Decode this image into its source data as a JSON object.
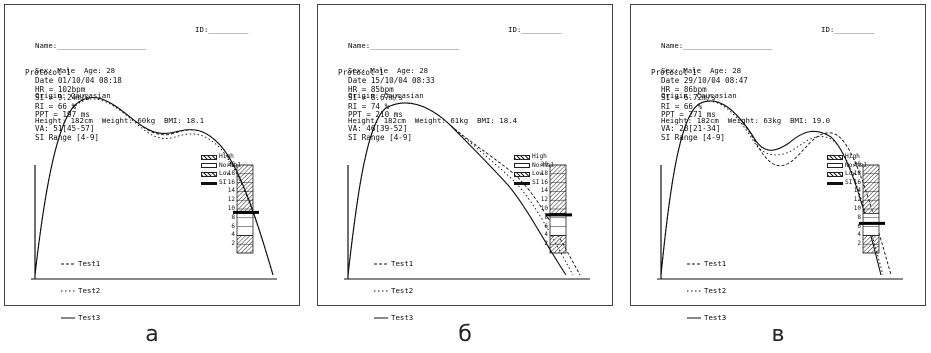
{
  "captions": [
    "а",
    "б",
    "в"
  ],
  "panels": [
    {
      "header": {
        "name": "Name:____________________",
        "id": "ID:_________",
        "line2": "Sex: Male  Age: 28",
        "line3": "Origin: Caucasian",
        "line4": "Height: 182cm  Weight: 60kg  BMI: 18.1"
      },
      "protocol": {
        "title": "Protocol 1",
        "date": "Date 01/10/04 08:18",
        "hr": "HR = 102bpm",
        "si": "SI = 9.24m/s",
        "ri": "RI = 66 %",
        "ppt": "PPT = 197 ms",
        "va": "VA: 51[45-57]",
        "si_range": "SI Range [4-9]"
      },
      "si_value": 9.24
    },
    {
      "header": {
        "name": "Name:____________________",
        "id": "ID:_________",
        "line2": "Sex: Male  Age: 28",
        "line3": "Origin: Caucasian",
        "line4": "Height: 182cm  Weight: 61kg  BMI: 18.4"
      },
      "protocol": {
        "title": "Protocol 1",
        "date": "Date 15/10/04 08:33",
        "hr": "HR = 85bpm",
        "si": "SI = 8.67m/s",
        "ri": "RI = 74 %",
        "ppt": "PPT = 210 ms",
        "va": "VA: 46[39-52]",
        "si_range": "SI Range [4-9]"
      },
      "si_value": 8.67
    },
    {
      "header": {
        "name": "Name:____________________",
        "id": "ID:_________",
        "line2": "Sex: Male  Age: 28",
        "line3": "Origin: Caucasian",
        "line4": "Height: 182cm  Weight: 63kg  BMI: 19.0"
      },
      "protocol": {
        "title": "Protocol 1",
        "date": "Date 29/10/04 08:47",
        "hr": "HR = 86bpm",
        "si": "SI = 6.72m/s",
        "ri": "RI = 66 %",
        "ppt": "PPT = 271 ms",
        "va": "VA: 28[21-34]",
        "si_range": "SI Range [4-9]"
      },
      "si_value": 6.72
    }
  ],
  "legend": {
    "test1": "Test1",
    "test2": "Test2",
    "test3": "Test3"
  },
  "scale_keys": {
    "high": "High",
    "normal": "Normal",
    "low": "Low",
    "si": "SI"
  },
  "scale_ticks": [
    "20",
    "18",
    "16",
    "14",
    "12",
    "10",
    "8",
    "6",
    "4",
    "2"
  ],
  "chart_data": [
    {
      "type": "line",
      "series": [
        {
          "name": "Test1"
        },
        {
          "name": "Test2"
        },
        {
          "name": "Test3"
        }
      ],
      "scale_range": [
        0,
        20
      ],
      "si": 9.24
    },
    {
      "type": "line",
      "series": [
        {
          "name": "Test1"
        },
        {
          "name": "Test2"
        },
        {
          "name": "Test3"
        }
      ],
      "scale_range": [
        0,
        20
      ],
      "si": 8.67
    },
    {
      "type": "line",
      "series": [
        {
          "name": "Test1"
        },
        {
          "name": "Test2"
        },
        {
          "name": "Test3"
        }
      ],
      "scale_range": [
        0,
        20
      ],
      "si": 6.72
    }
  ]
}
